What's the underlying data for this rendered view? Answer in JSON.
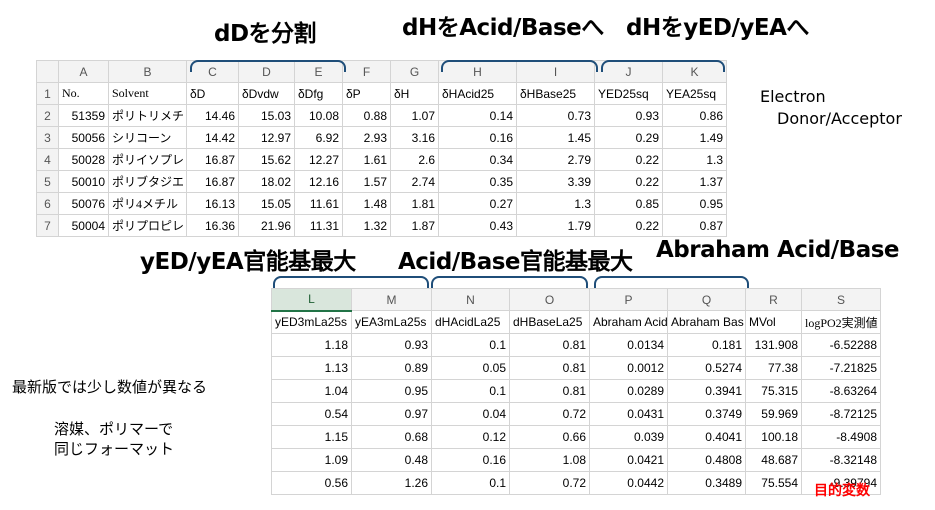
{
  "annotations": {
    "dd_split": "dDを分割",
    "dh_acid_base": "dHをAcid/Baseへ",
    "dh_yed_yea": "dHをyED/yEAへ",
    "electron_line1": "Electron",
    "electron_line2": "Donor/Acceptor",
    "yed_max": "yED/yEA官能基最大",
    "acid_base_max": "Acid/Base官能基最大",
    "abraham": "Abraham Acid/Base",
    "latest_version": "最新版では少し数値が異なる",
    "same_format_line1": "溶媒、ポリマーで",
    "same_format_line2": "同じフォーマット",
    "target_variable": "目的変数"
  },
  "top_sheet": {
    "columns": [
      "A",
      "B",
      "C",
      "D",
      "E",
      "F",
      "G",
      "H",
      "I",
      "J",
      "K"
    ],
    "row_numbers": [
      "1",
      "2",
      "3",
      "4",
      "5",
      "6",
      "7"
    ],
    "header": [
      "No.",
      "Solvent",
      "δD",
      "δDvdw",
      "δDfg",
      "δP",
      "δH",
      "δHAcid25",
      "δHBase25",
      "YED25sq",
      "YEA25sq"
    ],
    "rows": [
      [
        "51359",
        "ポリトリメチ",
        "14.46",
        "15.03",
        "10.08",
        "0.88",
        "1.07",
        "0.14",
        "0.73",
        "0.93",
        "0.86"
      ],
      [
        "50056",
        "シリコーン",
        "14.42",
        "12.97",
        "6.92",
        "2.93",
        "3.16",
        "0.16",
        "1.45",
        "0.29",
        "1.49"
      ],
      [
        "50028",
        "ポリイソプレ",
        "16.87",
        "15.62",
        "12.27",
        "1.61",
        "2.6",
        "0.34",
        "2.79",
        "0.22",
        "1.3"
      ],
      [
        "50010",
        "ポリブタジエ",
        "16.87",
        "18.02",
        "12.16",
        "1.57",
        "2.74",
        "0.35",
        "3.39",
        "0.22",
        "1.37"
      ],
      [
        "50076",
        "ポリ4メチル",
        "16.13",
        "15.05",
        "11.61",
        "1.48",
        "1.81",
        "0.27",
        "1.3",
        "0.85",
        "0.95"
      ],
      [
        "50004",
        "ポリプロピレ",
        "16.36",
        "21.96",
        "11.31",
        "1.32",
        "1.87",
        "0.43",
        "1.79",
        "0.22",
        "0.87"
      ]
    ]
  },
  "bottom_sheet": {
    "columns": [
      "L",
      "M",
      "N",
      "O",
      "P",
      "Q",
      "R",
      "S"
    ],
    "header": [
      "yED3mLa25s",
      "yEA3mLa25s",
      "dHAcidLa25",
      "dHBaseLa25",
      "Abraham Acid",
      "Abraham Bas",
      "MVol",
      "logPO2実測値"
    ],
    "rows": [
      [
        "1.18",
        "0.93",
        "0.1",
        "0.81",
        "0.0134",
        "0.181",
        "131.908",
        "-6.52288"
      ],
      [
        "1.13",
        "0.89",
        "0.05",
        "0.81",
        "0.0012",
        "0.5274",
        "77.38",
        "-7.21825"
      ],
      [
        "1.04",
        "0.95",
        "0.1",
        "0.81",
        "0.0289",
        "0.3941",
        "75.315",
        "-8.63264"
      ],
      [
        "0.54",
        "0.97",
        "0.04",
        "0.72",
        "0.0431",
        "0.3749",
        "59.969",
        "-8.72125"
      ],
      [
        "1.15",
        "0.68",
        "0.12",
        "0.66",
        "0.039",
        "0.4041",
        "100.18",
        "-8.4908"
      ],
      [
        "1.09",
        "0.48",
        "0.16",
        "1.08",
        "0.0421",
        "0.4808",
        "48.687",
        "-8.32148"
      ],
      [
        "0.56",
        "1.26",
        "0.1",
        "0.72",
        "0.0442",
        "0.3489",
        "75.554",
        "-9.39794"
      ]
    ]
  }
}
